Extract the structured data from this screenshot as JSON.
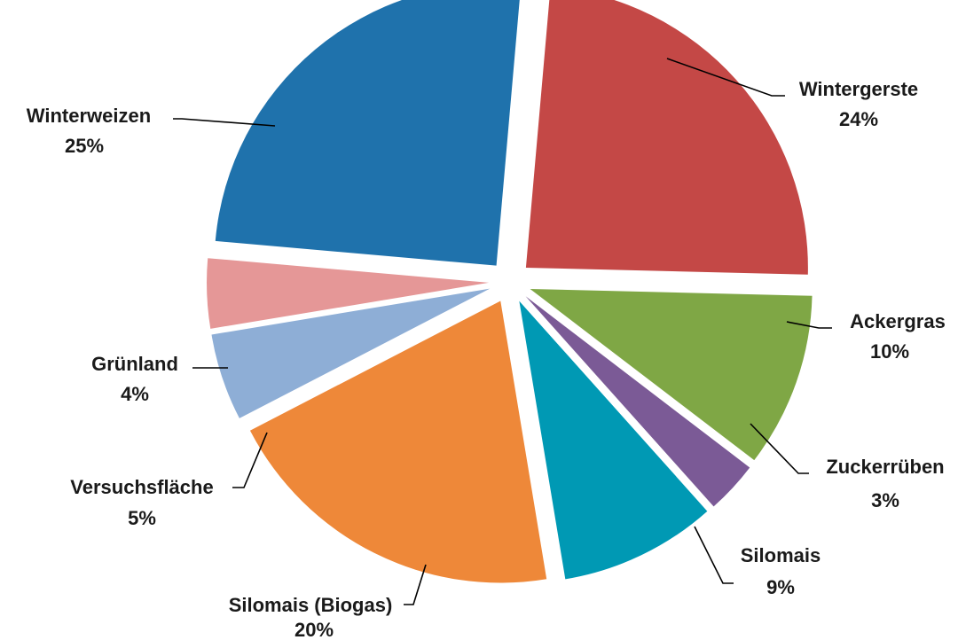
{
  "chart_data": {
    "type": "pie",
    "exploded": true,
    "start_angle_deg": -85,
    "direction": "clockwise",
    "legend": "none",
    "slices": [
      {
        "label": "Wintergerste",
        "value": 24,
        "value_label": "24%",
        "color": "#C44846"
      },
      {
        "label": "Ackergras",
        "value": 10,
        "value_label": "10%",
        "color": "#7FA745"
      },
      {
        "label": "Zuckerrüben",
        "value": 3,
        "value_label": "3%",
        "color": "#7B5A96"
      },
      {
        "label": "Silomais",
        "value": 9,
        "value_label": "9%",
        "color": "#0099B4"
      },
      {
        "label": "Silomais (Biogas)",
        "value": 20,
        "value_label": "20%",
        "color": "#EE8839"
      },
      {
        "label": "Versuchsfläche",
        "value": 5,
        "value_label": "5%",
        "color": "#8EAED6"
      },
      {
        "label": "Grünland",
        "value": 4,
        "value_label": "4%",
        "color": "#E59797"
      },
      {
        "label": "Winterweizen",
        "value": 25,
        "value_label": "25%",
        "color": "#1F72AC"
      }
    ]
  }
}
